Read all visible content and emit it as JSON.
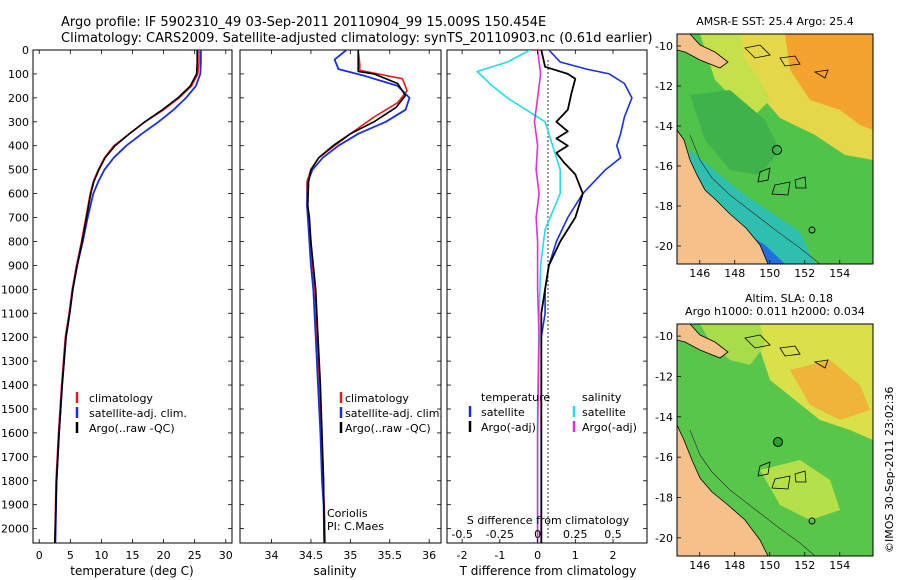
{
  "header": {
    "title_line1": "Argo profile: IF 5902310_49 03-Sep-2011 20110904_99 15.009S 150.454E",
    "title_line2": "Climatology: CARS2009. Satellite-adjusted climatology: synTS_20110903.nc (0.61d earlier)"
  },
  "colors": {
    "climatology": "#e81b1b",
    "satellite": "#1a2ee0",
    "argo": "#000000",
    "sat_salinity": "#22dde8",
    "argo_salinity": "#e030d8",
    "land": "#f5c08a"
  },
  "depth_axis": {
    "ticks": [
      "0",
      "100",
      "200",
      "300",
      "400",
      "500",
      "600",
      "700",
      "800",
      "900",
      "1000",
      "1100",
      "1200",
      "1300",
      "1400",
      "1500",
      "1600",
      "1700",
      "1800",
      "1900",
      "2000"
    ]
  },
  "panel_temperature": {
    "xlabel": "temperature (deg C)",
    "xticks": [
      "0",
      "5",
      "10",
      "15",
      "20",
      "25",
      "30"
    ],
    "legend": [
      "climatology",
      "satellite-adj. clim.",
      "Argo(..raw -QC)"
    ]
  },
  "panel_salinity": {
    "xlabel": "salinity",
    "xticks": [
      "34",
      "34.5",
      "35",
      "35.5",
      "36"
    ],
    "legend": [
      "climatology",
      "satellite-adj. clim.",
      "Argo(..raw -QC)"
    ],
    "annotation_line1": "Coriolis",
    "annotation_line2": "PI: C.Maes"
  },
  "panel_difference": {
    "legend_temperature_header": "temperature",
    "legend_salinity_header": "salinity",
    "legend_temperature": [
      "satellite",
      "Argo(-adj)"
    ],
    "legend_salinity": [
      "satellite",
      "Argo(-adj)"
    ],
    "top_label": "S difference from climatology",
    "top_ticks": [
      "-0.5",
      "-0.25",
      "0",
      "0.25",
      "0.5"
    ],
    "xlabel": "T difference from climatology",
    "xticks": [
      "-2",
      "-1",
      "0",
      "1",
      "2"
    ]
  },
  "map_sst": {
    "title": "AMSR-E SST: 25.4  Argo: 25.4",
    "yticks": [
      "-10",
      "-12",
      "-14",
      "-16",
      "-18",
      "-20"
    ],
    "xticks": [
      "146",
      "148",
      "150",
      "152",
      "154"
    ]
  },
  "map_sla": {
    "title_line1": "Altim. SLA: 0.18",
    "title_line2": "Argo h1000: 0.011 h2000: 0.034",
    "yticks": [
      "-10",
      "-12",
      "-14",
      "-16",
      "-18",
      "-20"
    ],
    "xticks": [
      "146",
      "148",
      "150",
      "152",
      "154"
    ]
  },
  "footer": {
    "credit": "©IMOS 30-Sep-2011 23:02:36"
  },
  "chart_data": [
    {
      "type": "line",
      "title": "",
      "xlabel": "temperature (deg C)",
      "ylabel": "",
      "xlim": [
        -1,
        31
      ],
      "ylim": [
        2060,
        0
      ],
      "series": [
        {
          "name": "climatology",
          "x": [
            25.7,
            25.7,
            25.5,
            24.5,
            22.5,
            20,
            17,
            14.5,
            12,
            10.5,
            9.5,
            8.7,
            8.2,
            7.5,
            6.8,
            6,
            5.3,
            4.8,
            4.2,
            3.6,
            3.1,
            2.7,
            2.5
          ],
          "y": [
            0,
            50,
            100,
            150,
            200,
            250,
            300,
            350,
            400,
            450,
            500,
            550,
            600,
            700,
            800,
            900,
            1000,
            1100,
            1200,
            1400,
            1600,
            1800,
            2060
          ]
        },
        {
          "name": "satellite-adj. clim.",
          "x": [
            26,
            26,
            25.9,
            25.2,
            23.6,
            21.6,
            19.2,
            16.5,
            14,
            12,
            10.5,
            9.5,
            8.7,
            7.8,
            7,
            6.1,
            5.4,
            4.9,
            4.3,
            3.7,
            3.2,
            2.8,
            2.6
          ],
          "y": [
            0,
            50,
            100,
            150,
            200,
            250,
            300,
            350,
            400,
            450,
            500,
            550,
            600,
            700,
            800,
            900,
            1000,
            1100,
            1200,
            1400,
            1600,
            1800,
            2060
          ]
        },
        {
          "name": "Argo(..raw -QC)",
          "x": [
            25.4,
            25.4,
            25.3,
            24.3,
            22.3,
            19.8,
            17,
            14.5,
            12.2,
            10.6,
            9.6,
            8.8,
            8.3,
            7.6,
            6.9,
            6.1,
            5.4,
            4.9,
            4.3,
            3.7,
            3.2,
            2.8,
            2.5
          ],
          "y": [
            0,
            50,
            100,
            150,
            200,
            250,
            300,
            350,
            400,
            450,
            500,
            550,
            600,
            700,
            800,
            900,
            1000,
            1100,
            1200,
            1400,
            1600,
            1800,
            2060
          ]
        }
      ]
    },
    {
      "type": "line",
      "title": "",
      "xlabel": "salinity",
      "ylabel": "",
      "xlim": [
        33.6,
        36.15
      ],
      "ylim": [
        2060,
        0
      ],
      "series": [
        {
          "name": "climatology",
          "x": [
            35.1,
            35.12,
            35.12,
            35.35,
            35.66,
            35.72,
            35.6,
            35.3,
            35,
            34.8,
            34.6,
            34.5,
            34.45,
            34.45,
            34.47,
            34.5,
            34.52,
            34.55,
            34.58,
            34.61,
            34.63,
            34.65,
            34.67,
            34.68
          ],
          "y": [
            0,
            60,
            85,
            100,
            120,
            170,
            220,
            280,
            350,
            400,
            450,
            500,
            550,
            650,
            700,
            800,
            900,
            1000,
            1200,
            1400,
            1600,
            1800,
            1900,
            2060
          ]
        },
        {
          "name": "satellite-adj. clim.",
          "x": [
            34.95,
            34.8,
            34.85,
            35.2,
            35.6,
            35.75,
            35.7,
            35.45,
            35.1,
            34.85,
            34.65,
            34.52,
            34.46,
            34.45,
            34.46,
            34.48,
            34.5,
            34.53,
            34.56,
            34.59,
            34.62,
            34.64,
            34.66,
            34.67
          ],
          "y": [
            0,
            40,
            80,
            110,
            150,
            200,
            250,
            300,
            350,
            400,
            450,
            500,
            550,
            650,
            700,
            800,
            900,
            1000,
            1200,
            1400,
            1600,
            1800,
            1900,
            2060
          ]
        },
        {
          "name": "Argo(..raw -QC)",
          "x": [
            35.1,
            35.1,
            35.3,
            35.6,
            35.7,
            35.58,
            35.3,
            35,
            34.78,
            34.6,
            34.5,
            34.47,
            34.46,
            34.48,
            34.5,
            34.53,
            34.56,
            34.59,
            34.62,
            34.64,
            34.66,
            34.67
          ],
          "y": [
            0,
            90,
            100,
            140,
            190,
            240,
            300,
            350,
            400,
            450,
            500,
            550,
            650,
            700,
            800,
            900,
            1000,
            1200,
            1400,
            1600,
            1800,
            2060
          ]
        }
      ]
    },
    {
      "type": "line",
      "title": "",
      "xlabel": "T difference from climatology",
      "ylabel": "",
      "xlim": [
        -2.4,
        2.9
      ],
      "ylim": [
        2060,
        0
      ],
      "series": [
        {
          "name": "temperature satellite",
          "x": [
            0.3,
            0.6,
            1.3,
            1.9,
            2.3,
            2.5,
            2.3,
            2.2,
            2.1,
            2.2,
            1.8,
            1.2,
            0.8,
            0.5,
            0.3,
            0.2,
            0.2,
            0.1,
            0.1,
            0.1,
            0.1,
            0.1
          ],
          "y": [
            0,
            50,
            80,
            100,
            140,
            200,
            280,
            350,
            400,
            450,
            500,
            600,
            700,
            800,
            900,
            1000,
            1100,
            1200,
            1400,
            1600,
            1800,
            2060
          ]
        },
        {
          "name": "temperature Argo(-adj)",
          "x": [
            0.1,
            0.2,
            0.8,
            1,
            0.9,
            0.8,
            0.5,
            0.8,
            0.5,
            0.8,
            0.5,
            0.7,
            1,
            1.2,
            1,
            0.6,
            0.3,
            0.2,
            0.1,
            0.1,
            0.1,
            0.1,
            0.1
          ],
          "y": [
            0,
            70,
            100,
            120,
            180,
            250,
            300,
            340,
            370,
            400,
            430,
            470,
            520,
            600,
            700,
            800,
            900,
            1000,
            1100,
            1400,
            1600,
            1800,
            2060
          ]
        },
        {
          "name": "salinity satellite",
          "x": [
            -0.05,
            -0.2,
            -0.4,
            -0.3,
            -0.2,
            0.05,
            0.1,
            0.15,
            0.15,
            0.05,
            0.02,
            0.01,
            0,
            0
          ],
          "y": [
            0,
            50,
            90,
            150,
            200,
            300,
            400,
            500,
            600,
            750,
            900,
            1100,
            1500,
            2060
          ]
        },
        {
          "name": "salinity Argo(-adj)",
          "x": [
            0,
            0.02,
            0,
            -0.02,
            0,
            -0.01,
            0.01,
            -0.01,
            0,
            0,
            0.01,
            0,
            0
          ],
          "y": [
            0,
            100,
            200,
            300,
            400,
            500,
            600,
            700,
            800,
            1000,
            1200,
            1600,
            2060
          ]
        }
      ]
    }
  ]
}
